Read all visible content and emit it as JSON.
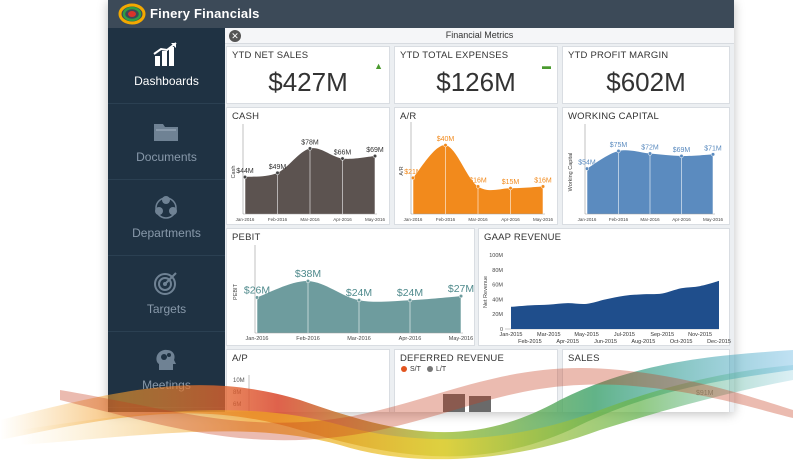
{
  "app": {
    "title": "Finery Financials"
  },
  "sidebar": {
    "items": [
      {
        "label": "Dashboards",
        "icon": "bar-chart-icon",
        "active": true
      },
      {
        "label": "Documents",
        "icon": "folder-icon",
        "active": false
      },
      {
        "label": "Departments",
        "icon": "people-icon",
        "active": false
      },
      {
        "label": "Targets",
        "icon": "target-icon",
        "active": false
      },
      {
        "label": "Meetings",
        "icon": "head-gears-icon",
        "active": false
      }
    ]
  },
  "content": {
    "title": "Financial Metrics",
    "close_icon": "close-icon"
  },
  "kpis": [
    {
      "title": "YTD NET SALES",
      "value": "$427M",
      "trend": "up",
      "trend_color": "#4a9a2e"
    },
    {
      "title": "YTD TOTAL EXPENSES",
      "value": "$126M",
      "trend": "flat",
      "trend_color": "#4a9a2e"
    },
    {
      "title": "YTD PROFIT MARGIN",
      "value": "$602M",
      "trend": "none",
      "trend_color": ""
    }
  ],
  "colors": {
    "cash": "#5c5350",
    "ar": "#f28a1c",
    "working_capital": "#5b8bbf",
    "pebit": "#6e9c9e",
    "gaap": "#1f4e8c",
    "sidebar_bg": "#1f3243",
    "topbar_bg": "#3c4a58"
  },
  "chart_data": [
    {
      "id": "cash",
      "type": "area",
      "title": "CASH",
      "ylabel": "Cash",
      "categories": [
        "Jan-2016",
        "Feb-2016",
        "Mar-2016",
        "Apr-2016",
        "May-2016"
      ],
      "values": [
        44,
        49,
        78,
        66,
        69
      ],
      "data_labels": [
        "$44M",
        "$49M",
        "$78M",
        "$66M",
        "$69M"
      ],
      "ylim": [
        0,
        100
      ]
    },
    {
      "id": "ar",
      "type": "area",
      "title": "A/R",
      "ylabel": "A/R",
      "categories": [
        "Jan-2016",
        "Feb-2016",
        "Mar-2016",
        "Apr-2016",
        "May-2016"
      ],
      "values": [
        21,
        40,
        16,
        15,
        16
      ],
      "data_labels": [
        "$21M",
        "$40M",
        "$16M",
        "$15M",
        "$16M"
      ],
      "ylim": [
        0,
        50
      ]
    },
    {
      "id": "working_capital",
      "type": "area",
      "title": "WORKING CAPITAL",
      "ylabel": "Working Capital",
      "categories": [
        "Jan-2016",
        "Feb-2016",
        "Mar-2016",
        "Apr-2016",
        "May-2016"
      ],
      "values": [
        54,
        75,
        72,
        69,
        71
      ],
      "data_labels": [
        "$54M",
        "$75M",
        "$72M",
        "$69M",
        "$71M"
      ],
      "ylim": [
        0,
        100
      ]
    },
    {
      "id": "pebit",
      "type": "area",
      "title": "PEBIT",
      "ylabel": "PEBIT",
      "categories": [
        "Jan-2016",
        "Feb-2016",
        "Mar-2016",
        "Apr-2016",
        "May-2016"
      ],
      "values": [
        26,
        38,
        24,
        24,
        27
      ],
      "data_labels": [
        "$26M",
        "$38M",
        "$24M",
        "$24M",
        "$27M"
      ],
      "ylim": [
        0,
        60
      ]
    },
    {
      "id": "gaap",
      "type": "area",
      "title": "GAAP REVENUE",
      "ylabel": "Net Revenue",
      "categories": [
        "Jan-2015",
        "Feb-2015",
        "Mar-2015",
        "Apr-2015",
        "May-2015",
        "Jun-2015",
        "Jul-2015",
        "Aug-2015",
        "Sep-2015",
        "Oct-2015",
        "Nov-2015",
        "Dec-2015"
      ],
      "values": [
        30,
        32,
        33,
        35,
        34,
        40,
        45,
        47,
        48,
        55,
        58,
        65
      ],
      "yticks": [
        "0",
        "20M",
        "40M",
        "60M",
        "80M",
        "100M"
      ],
      "ylim": [
        0,
        100
      ]
    },
    {
      "id": "ap",
      "type": "bar",
      "title": "A/P",
      "yticks": [
        "10M",
        "8M",
        "6M"
      ]
    },
    {
      "id": "deferred",
      "type": "bar",
      "title": "DEFERRED REVENUE",
      "legend": [
        {
          "name": "S/T",
          "color": "#e2541e"
        },
        {
          "name": "L/T",
          "color": "#777777"
        }
      ]
    },
    {
      "id": "sales",
      "type": "area",
      "title": "SALES",
      "data_labels": [
        "$91M"
      ]
    }
  ]
}
